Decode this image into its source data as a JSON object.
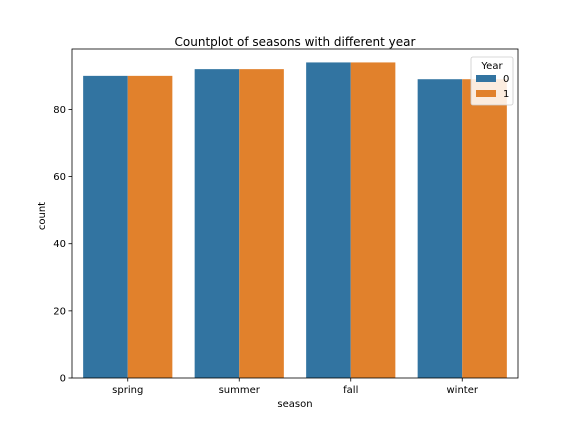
{
  "chart_data": {
    "type": "bar",
    "title": "Countplot of seasons with different year",
    "xlabel": "season",
    "ylabel": "count",
    "categories": [
      "spring",
      "summer",
      "fall",
      "winter"
    ],
    "series": [
      {
        "name": "0",
        "color": "#3274a1",
        "values": [
          90,
          92,
          94,
          89
        ]
      },
      {
        "name": "1",
        "color": "#e1812c",
        "values": [
          90,
          92,
          94,
          89
        ]
      }
    ],
    "ylim": [
      0,
      98
    ],
    "yticks": [
      0,
      20,
      40,
      60,
      80
    ],
    "legend": {
      "title": "Year",
      "placement": "top-right"
    },
    "grid": false
  }
}
